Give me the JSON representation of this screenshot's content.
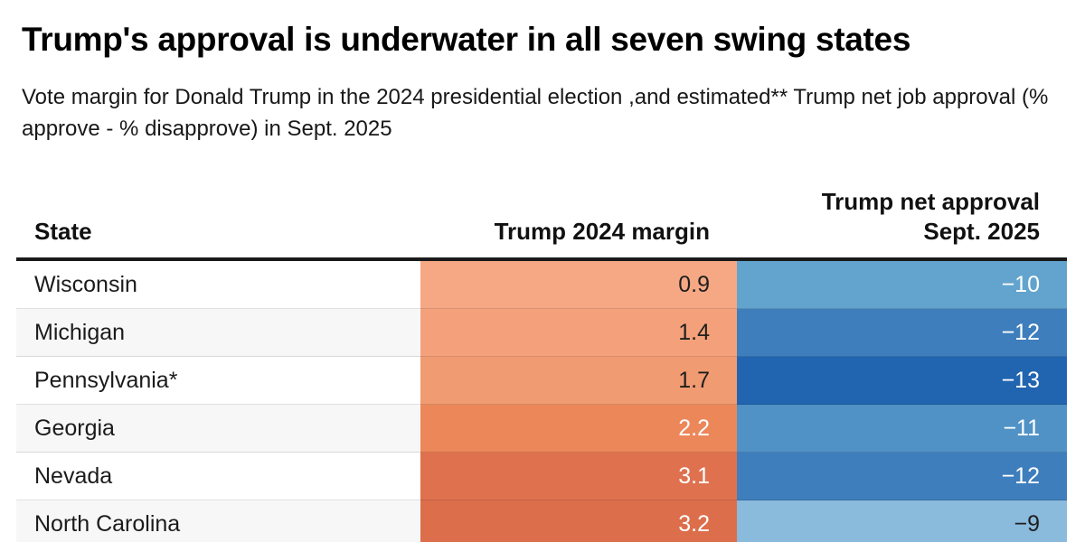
{
  "title": "Trump's approval is underwater in all seven swing states",
  "subtitle": "Vote margin for Donald Trump in the 2024 presidential election ,and estimated** Trump net job approval (% approve - % disapprove) in Sept. 2025",
  "table": {
    "header": {
      "state": "State",
      "margin": "Trump 2024 margin",
      "approval_line1": "Trump net approval",
      "approval_line2": "Sept. 2025"
    },
    "rows": [
      {
        "state": "Wisconsin",
        "margin": "0.9",
        "approval": "−10",
        "margin_bg": "#F6A884",
        "margin_text": "#1f1f1f",
        "approval_bg": "#63A4CE",
        "approval_text": "#FFFFFF"
      },
      {
        "state": "Michigan",
        "margin": "1.4",
        "approval": "−12",
        "margin_bg": "#F4A17B",
        "margin_text": "#1f1f1f",
        "approval_bg": "#3E7EBC",
        "approval_text": "#FFFFFF"
      },
      {
        "state": "Pennsylvania*",
        "margin": "1.7",
        "approval": "−13",
        "margin_bg": "#F19B72",
        "margin_text": "#1f1f1f",
        "approval_bg": "#2165B0",
        "approval_text": "#FFFFFF"
      },
      {
        "state": "Georgia",
        "margin": "2.2",
        "approval": "−11",
        "margin_bg": "#EC8759",
        "margin_text": "#FFFFFF",
        "approval_bg": "#5092C6",
        "approval_text": "#FFFFFF"
      },
      {
        "state": "Nevada",
        "margin": "3.1",
        "approval": "−12",
        "margin_bg": "#DF714F",
        "margin_text": "#FFFFFF",
        "approval_bg": "#3E7EBC",
        "approval_text": "#FFFFFF"
      },
      {
        "state": "North Carolina",
        "margin": "3.2",
        "approval": "−9",
        "margin_bg": "#DD6E4B",
        "margin_text": "#FFFFFF",
        "approval_bg": "#8ABADC",
        "approval_text": "#1f1f1f"
      }
    ]
  },
  "colors": {
    "header_rule": "#1a1a1a",
    "zebra_stripe": "#f7f7f7",
    "page_background": "#ffffff"
  },
  "chart_data": {
    "type": "table",
    "title": "Trump's approval is underwater in all seven swing states",
    "subtitle": "Vote margin for Donald Trump in the 2024 presidential election ,and estimated** Trump net job approval (% approve - % disapprove) in Sept. 2025",
    "columns": [
      "State",
      "Trump 2024 margin",
      "Trump net approval Sept. 2025"
    ],
    "rows": [
      [
        "Wisconsin",
        0.9,
        -10
      ],
      [
        "Michigan",
        1.4,
        -12
      ],
      [
        "Pennsylvania*",
        1.7,
        -13
      ],
      [
        "Georgia",
        2.2,
        -11
      ],
      [
        "Nevada",
        3.1,
        -12
      ],
      [
        "North Carolina",
        3.2,
        -9
      ]
    ],
    "layout_hints": {
      "margin_column_palette": "orange scale, darker = larger margin",
      "approval_column_palette": "blue scale, darker = more negative",
      "state_column": "zebra striped white / light gray",
      "note": "seventh row cut off at bottom edge of image"
    }
  }
}
